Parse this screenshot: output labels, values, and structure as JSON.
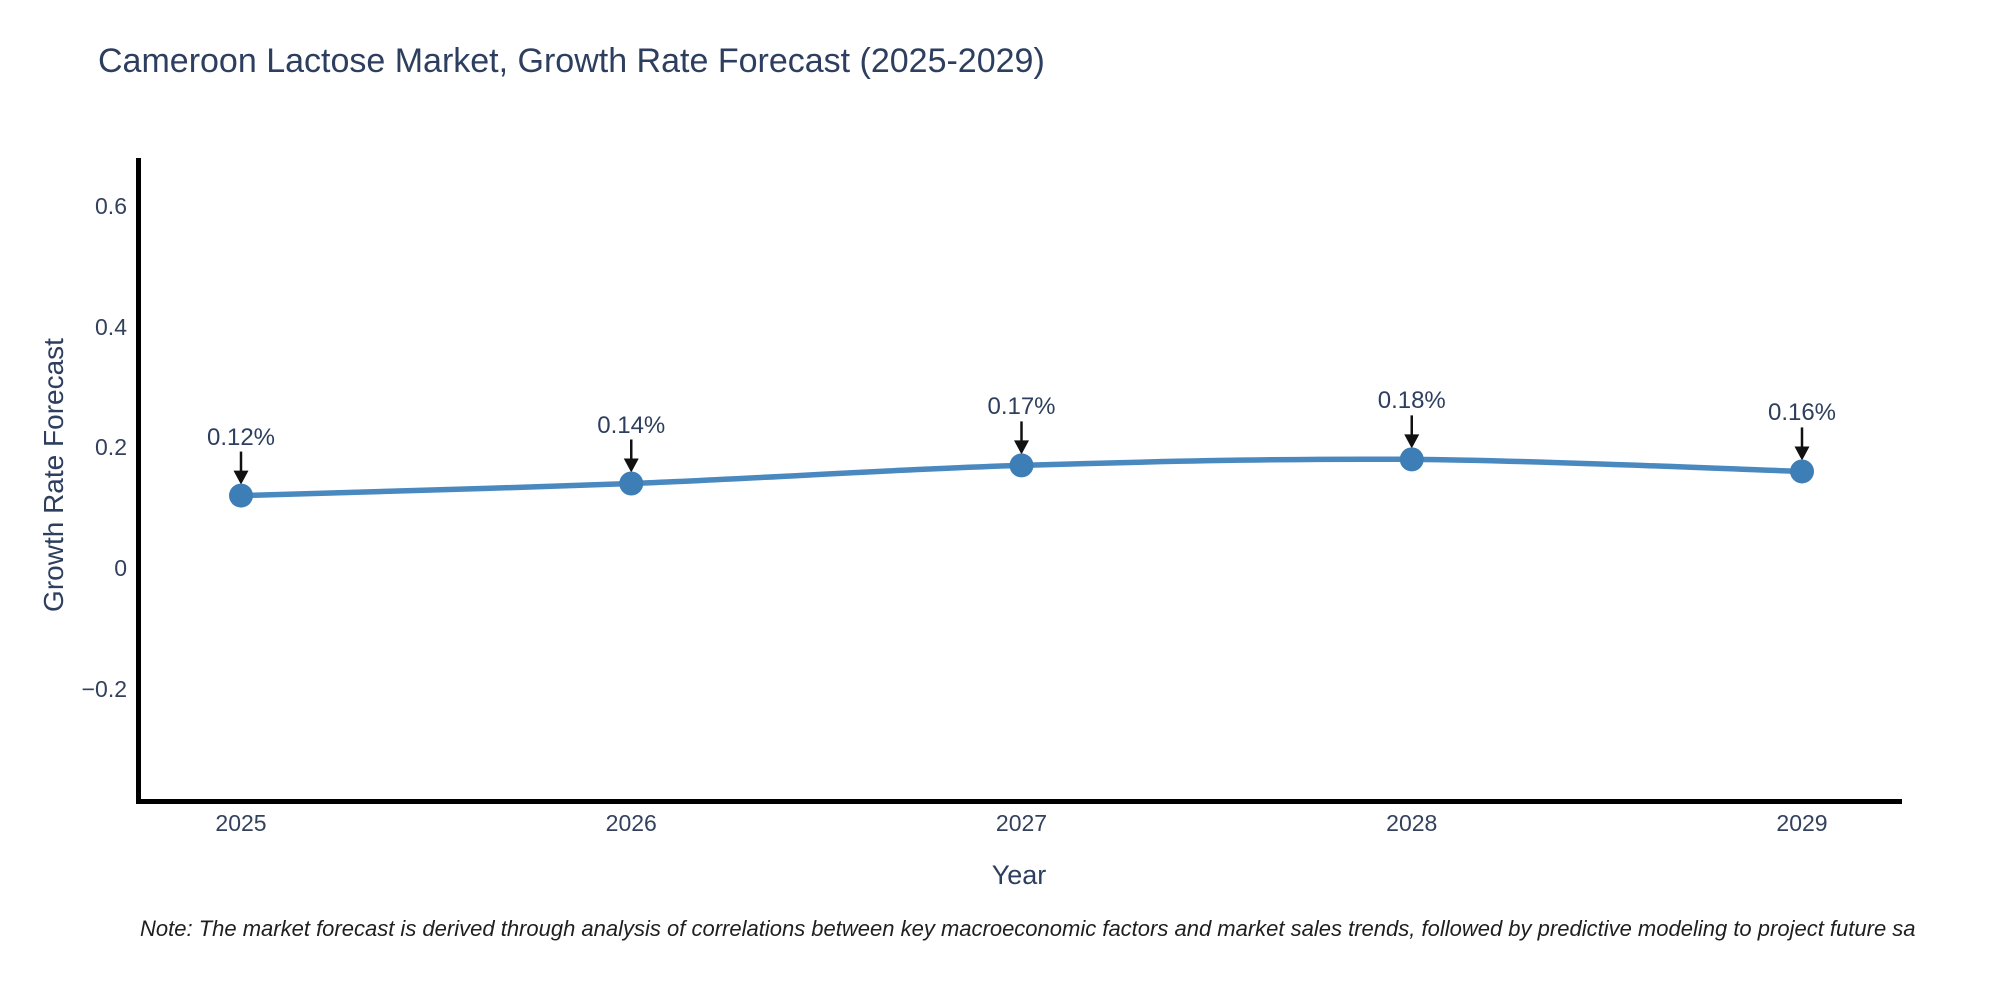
{
  "title": "Cameroon Lactose Market, Growth Rate Forecast (2025-2029)",
  "note": "Note: The market forecast is derived through analysis of correlations between key macroeconomic factors and market sales trends, followed by predictive modeling to project future sa",
  "chart_data": {
    "type": "line",
    "title": "Cameroon Lactose Market, Growth Rate Forecast (2025-2029)",
    "xlabel": "Year",
    "ylabel": "Growth Rate Forecast",
    "categories": [
      "2025",
      "2026",
      "2027",
      "2028",
      "2029"
    ],
    "series": [
      {
        "name": "Growth Rate Forecast",
        "values": [
          0.12,
          0.14,
          0.17,
          0.18,
          0.16
        ]
      }
    ],
    "point_labels": [
      "0.12%",
      "0.14%",
      "0.17%",
      "0.18%",
      "0.16%"
    ],
    "ytick_labels": [
      "0.6",
      "0.4",
      "0.2",
      "0",
      "−0.2"
    ],
    "ytick_values": [
      0.6,
      0.4,
      0.2,
      0,
      -0.2
    ],
    "ylim": [
      -0.385,
      0.676
    ],
    "grid": false,
    "legend": "none",
    "line_shape": "spline",
    "colors": {
      "line": "#4a89c0",
      "marker": "#3d7eb6",
      "axis": "#000000",
      "text": "#2d3e5f",
      "annotation_arrow": "#111111",
      "background": "#ffffff"
    }
  }
}
